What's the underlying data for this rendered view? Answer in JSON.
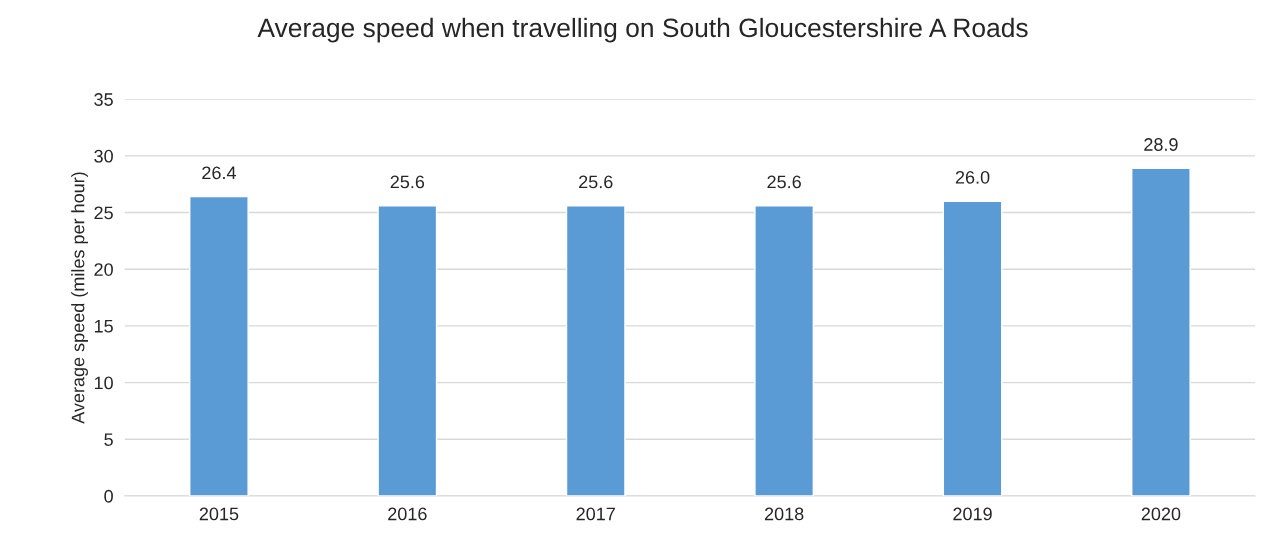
{
  "chart_data": {
    "type": "bar",
    "title": "Average speed when travelling on South Gloucestershire A Roads",
    "ylabel": "Average speed (miles per hour)",
    "categories": [
      "2015",
      "2016",
      "2017",
      "2018",
      "2019",
      "2020"
    ],
    "values": [
      26.4,
      25.6,
      25.6,
      25.6,
      26.0,
      28.9
    ],
    "color": "#5b9bd5",
    "ylim": [
      0,
      35
    ],
    "yticks": [
      0,
      5,
      10,
      15,
      20,
      25,
      30,
      35
    ],
    "grid": "y",
    "value_labels": [
      "26.4",
      "25.6",
      "25.6",
      "25.6",
      "26.0",
      "28.9"
    ]
  }
}
